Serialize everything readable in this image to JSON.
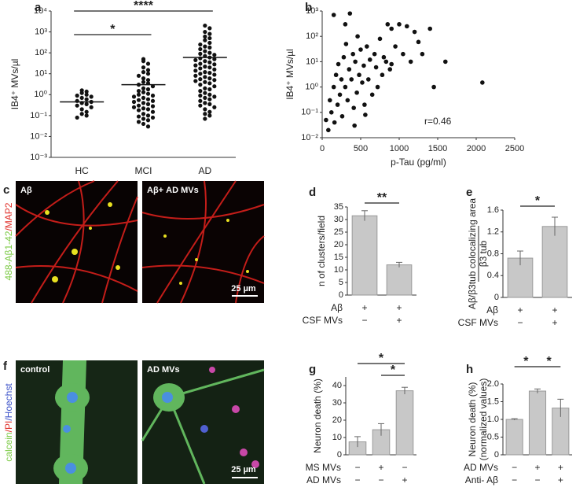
{
  "chart_data": [
    {
      "panel": "a",
      "type": "strip",
      "ylabel": [
        "IB4⁺ MVs/µl"
      ],
      "log": true,
      "categories": [
        "HC",
        "MCI",
        "AD"
      ],
      "values": [
        [
          1.6,
          1.4,
          1.2,
          1.0,
          0.9,
          0.8,
          0.7,
          0.6,
          0.5,
          0.45,
          0.4,
          0.35,
          0.3,
          0.25,
          0.2,
          0.15,
          0.12,
          0.1,
          0.08
        ],
        [
          50,
          40,
          30,
          20,
          15,
          12,
          10,
          8,
          6,
          5,
          4,
          3.5,
          3,
          2.5,
          2,
          1.8,
          1.5,
          1.3,
          1.1,
          1,
          0.9,
          0.8,
          0.7,
          0.6,
          0.55,
          0.5,
          0.45,
          0.4,
          0.35,
          0.3,
          0.28,
          0.25,
          0.22,
          0.2,
          0.18,
          0.15,
          0.12,
          0.1,
          0.09,
          0.08,
          0.07,
          0.06,
          0.05,
          0.04,
          0.03
        ],
        [
          2000,
          1500,
          1000,
          800,
          600,
          500,
          400,
          300,
          250,
          200,
          180,
          150,
          120,
          100,
          90,
          80,
          70,
          60,
          55,
          50,
          45,
          40,
          35,
          30,
          28,
          25,
          22,
          20,
          18,
          16,
          14,
          12,
          11,
          10,
          9,
          8,
          7,
          6,
          5.5,
          5,
          4.5,
          4,
          3.5,
          3,
          2.5,
          2,
          1.8,
          1.5,
          1.2,
          1,
          0.9,
          0.8,
          0.7,
          0.6,
          0.5,
          0.4,
          0.35,
          0.3,
          0.25,
          0.2,
          0.15,
          0.12,
          0.1,
          0.07
        ]
      ],
      "means": [
        0.45,
        3,
        60
      ],
      "color": "#111111",
      "ylim": [
        0.001,
        10000
      ],
      "yticks": [
        {
          "value": 0.001,
          "label": "10⁻³"
        },
        {
          "value": 0.01,
          "label": "10⁻²"
        },
        {
          "value": 0.1,
          "label": "10⁻¹"
        },
        {
          "value": 1,
          "label": "10⁰"
        },
        {
          "value": 10,
          "label": "10¹"
        },
        {
          "value": 100,
          "label": "10²"
        },
        {
          "value": 1000,
          "label": "10³"
        },
        {
          "value": 10000,
          "label": "10⁴"
        }
      ],
      "annotations": [
        "*",
        "****"
      ]
    },
    {
      "panel": "b",
      "type": "scatter",
      "ylabel": [
        "IB4⁺ MVs/µl"
      ],
      "xlabel": "p-Tau (pg/ml)",
      "log": true,
      "color": "#111111",
      "x": [
        50,
        80,
        100,
        120,
        150,
        160,
        180,
        200,
        210,
        230,
        250,
        260,
        280,
        300,
        310,
        330,
        350,
        360,
        380,
        400,
        410,
        430,
        450,
        460,
        480,
        500,
        520,
        540,
        560,
        580,
        600,
        620,
        650,
        680,
        700,
        720,
        750,
        780,
        800,
        830,
        850,
        880,
        900,
        950,
        1000,
        1050,
        1100,
        1150,
        1200,
        1250,
        1300,
        1400,
        1450,
        1600,
        2080,
        300,
        420,
        150,
        550,
        900
      ],
      "values": [
        0.05,
        0.02,
        0.3,
        0.1,
        1,
        0.04,
        3,
        0.2,
        8,
        0.5,
        2,
        0.07,
        15,
        1,
        50,
        0.3,
        5,
        800,
        2,
        20,
        0.15,
        10,
        0.6,
        100,
        3,
        30,
        1.5,
        7,
        0.08,
        40,
        2,
        12,
        0.5,
        20,
        6,
        1,
        80,
        3,
        15,
        10,
        300,
        5,
        200,
        40,
        300,
        20,
        250,
        10,
        150,
        60,
        20,
        200,
        1,
        10,
        1.5,
        300,
        0.03,
        700,
        0.2,
        8
      ],
      "xlim": [
        0,
        2500
      ],
      "xticks": [
        0,
        500,
        1000,
        1500,
        2000,
        2500
      ],
      "ylim": [
        0.01,
        1000
      ],
      "yticks": [
        {
          "value": 0.01,
          "label": "10⁻²"
        },
        {
          "value": 0.1,
          "label": "10⁻¹"
        },
        {
          "value": 1,
          "label": "10⁰"
        },
        {
          "value": 10,
          "label": "10¹"
        },
        {
          "value": 100,
          "label": "10²"
        },
        {
          "value": 1000,
          "label": "10³"
        }
      ],
      "annotations": [
        "r=0.46"
      ]
    },
    {
      "panel": "d",
      "type": "bar",
      "ylabel": [
        "n of clusters/field"
      ],
      "color": "#c8c8c8",
      "values": [
        31.5,
        12
      ],
      "errors": [
        2,
        1
      ],
      "ylim": [
        0,
        35
      ],
      "yticks": [
        0,
        5,
        10,
        15,
        20,
        25,
        30,
        35
      ],
      "conditions": [
        {
          "name": "Aβ",
          "values": [
            "+",
            "+"
          ]
        },
        {
          "name": "CSF MVs",
          "values": [
            "−",
            "+"
          ]
        }
      ],
      "annotations": [
        "**"
      ]
    },
    {
      "panel": "e",
      "type": "bar",
      "ylabel": [
        "Aβ/β3tub colocalizing area",
        "β3 tub"
      ],
      "color": "#c8c8c8",
      "values": [
        0.72,
        1.3
      ],
      "errors": [
        0.13,
        0.17
      ],
      "ylim": [
        0,
        1.6
      ],
      "yticks": [
        0,
        0.4,
        0.8,
        1.2,
        1.6
      ],
      "conditions": [
        {
          "name": "Aβ",
          "values": [
            "+",
            "+"
          ]
        },
        {
          "name": "CSF MVs",
          "values": [
            "−",
            "+"
          ]
        }
      ],
      "annotations": [
        "*"
      ]
    },
    {
      "panel": "g",
      "type": "bar",
      "ylabel": [
        "Neuron death (%)"
      ],
      "color": "#c8c8c8",
      "values": [
        7.5,
        14.5,
        37
      ],
      "errors": [
        3,
        3.5,
        2
      ],
      "ylim": [
        0,
        45
      ],
      "yticks": [
        0,
        10,
        20,
        30,
        40
      ],
      "conditions": [
        {
          "name": "MS MVs",
          "values": [
            "−",
            "+",
            "−"
          ]
        },
        {
          "name": "AD MVs",
          "values": [
            "−",
            "−",
            "+"
          ]
        }
      ],
      "annotations": [
        "*",
        "*"
      ]
    },
    {
      "panel": "h",
      "type": "bar",
      "ylabel": [
        "Neuron death (%)",
        "(normalized values)"
      ],
      "color": "#c8c8c8",
      "values": [
        1.0,
        1.8,
        1.32
      ],
      "errors": [
        0.02,
        0.06,
        0.25
      ],
      "ylim": [
        0,
        2
      ],
      "yticks": [
        0,
        0.5,
        {
          "value": 1,
          "label": "1.0"
        },
        1.5,
        {
          "value": 2,
          "label": "2.0"
        }
      ],
      "conditions": [
        {
          "name": "AD MVs",
          "values": [
            "−",
            "+",
            "+"
          ]
        },
        {
          "name": "Anti- Aβ",
          "values": [
            "−",
            "−",
            "+"
          ]
        }
      ],
      "annotations": [
        "*",
        "*"
      ]
    }
  ],
  "images": {
    "c": {
      "panel": "c",
      "side_label": [
        "488-Aβ1-42",
        "/MAP2"
      ],
      "left": "Aβ",
      "right": "Aβ+ AD MVs",
      "scale": "25 µm"
    },
    "f": {
      "panel": "f",
      "side_label": [
        "calcein",
        "/PI",
        "/Hoechst"
      ],
      "left": "control",
      "right": "AD MVs",
      "scale": "25 µm"
    }
  }
}
